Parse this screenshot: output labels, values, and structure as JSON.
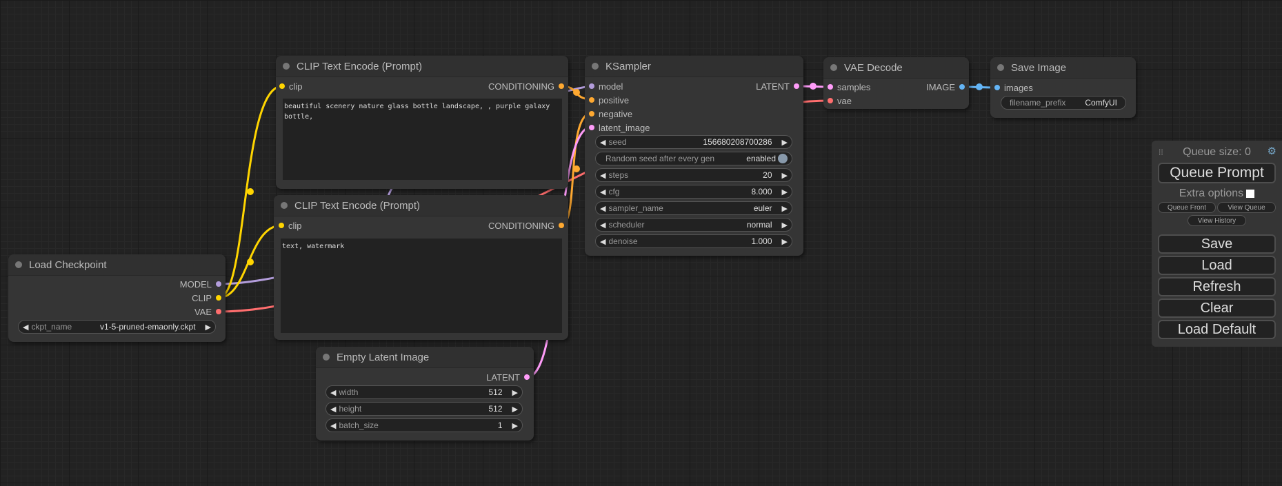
{
  "colors": {
    "model": "#b39ddb",
    "clip": "#ffd500",
    "vae": "#ff6e6e",
    "conditioning": "#ffa931",
    "latent": "#ff9cf9",
    "image": "#64b5f6"
  },
  "load_checkpoint": {
    "title": "Load Checkpoint",
    "outputs": [
      "MODEL",
      "CLIP",
      "VAE"
    ],
    "ckpt_label": "ckpt_name",
    "ckpt_value": "v1-5-pruned-emaonly.ckpt"
  },
  "clip_pos": {
    "title": "CLIP Text Encode (Prompt)",
    "input": "clip",
    "output": "CONDITIONING",
    "text": "beautiful scenery nature glass bottle landscape, , purple galaxy bottle,"
  },
  "clip_neg": {
    "title": "CLIP Text Encode (Prompt)",
    "input": "clip",
    "output": "CONDITIONING",
    "text": "text, watermark"
  },
  "empty_latent": {
    "title": "Empty Latent Image",
    "output": "LATENT",
    "widgets": [
      {
        "label": "width",
        "value": "512"
      },
      {
        "label": "height",
        "value": "512"
      },
      {
        "label": "batch_size",
        "value": "1"
      }
    ]
  },
  "ksampler": {
    "title": "KSampler",
    "inputs": [
      "model",
      "positive",
      "negative",
      "latent_image"
    ],
    "output": "LATENT",
    "seed": {
      "label": "seed",
      "value": "156680208700286"
    },
    "random_seed": {
      "label": "Random seed after every gen",
      "value": "enabled"
    },
    "widgets": [
      {
        "label": "steps",
        "value": "20"
      },
      {
        "label": "cfg",
        "value": "8.000"
      },
      {
        "label": "sampler_name",
        "value": "euler"
      },
      {
        "label": "scheduler",
        "value": "normal"
      },
      {
        "label": "denoise",
        "value": "1.000"
      }
    ]
  },
  "vae_decode": {
    "title": "VAE Decode",
    "inputs": [
      "samples",
      "vae"
    ],
    "output": "IMAGE"
  },
  "save_image": {
    "title": "Save Image",
    "input": "images",
    "prefix_label": "filename_prefix",
    "prefix_value": "ComfyUI"
  },
  "panel": {
    "queue_size": "Queue size: 0",
    "queue_prompt": "Queue Prompt",
    "extra_options": "Extra options",
    "queue_front": "Queue Front",
    "view_queue": "View Queue",
    "view_history": "View History",
    "save": "Save",
    "load": "Load",
    "refresh": "Refresh",
    "clear": "Clear",
    "load_default": "Load Default"
  }
}
